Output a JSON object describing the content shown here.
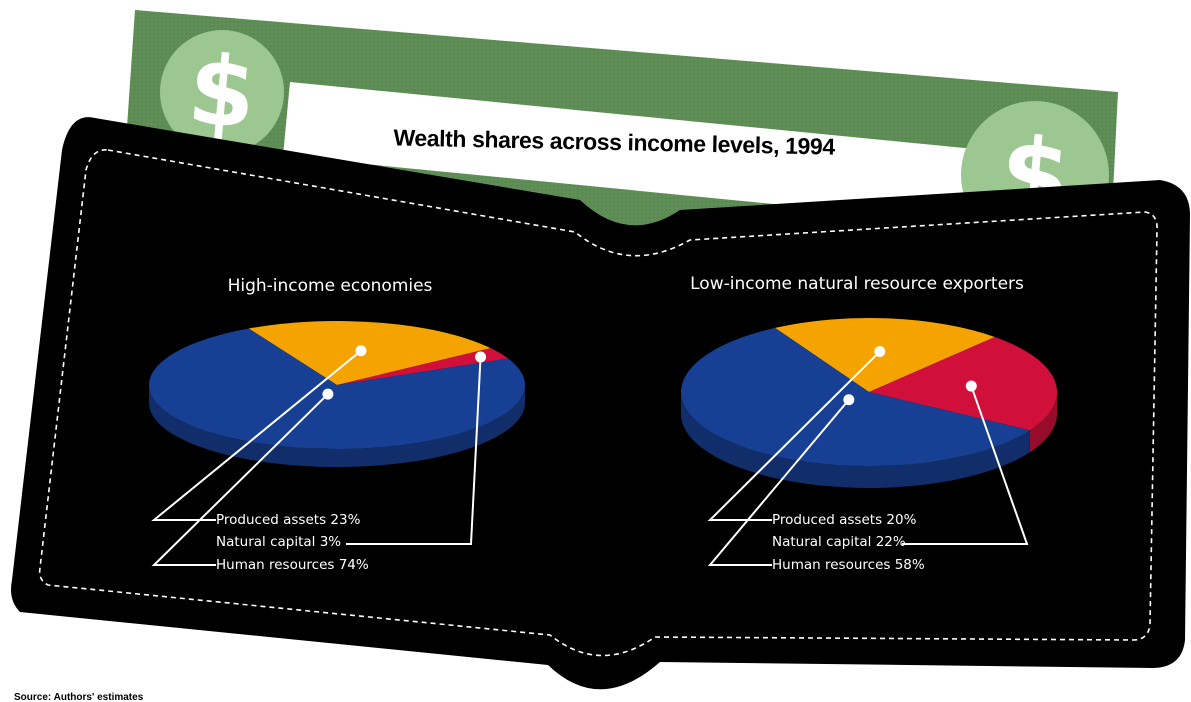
{
  "title": "Wealth shares across income levels, 1994",
  "source": "Source: Authors' estimates",
  "colors": {
    "produced_assets": "#f5a300",
    "natural_capital": "#d0103a",
    "human_resources": "#173f93",
    "wallet": "#000000",
    "bill": "#5f8f57"
  },
  "chart_data": [
    {
      "type": "pie",
      "title": "High-income economies",
      "categories": [
        "Produced assets",
        "Natural capital",
        "Human resources"
      ],
      "values": [
        23,
        3,
        74
      ],
      "labels": [
        "Produced assets 23%",
        "Natural capital 3%",
        "Human resources 74%"
      ]
    },
    {
      "type": "pie",
      "title": "Low-income natural resource exporters",
      "categories": [
        "Produced assets",
        "Natural capital",
        "Human resources"
      ],
      "values": [
        20,
        22,
        58
      ],
      "labels": [
        "Produced assets 20%",
        "Natural capital 22%",
        "Human resources 58%"
      ]
    }
  ]
}
